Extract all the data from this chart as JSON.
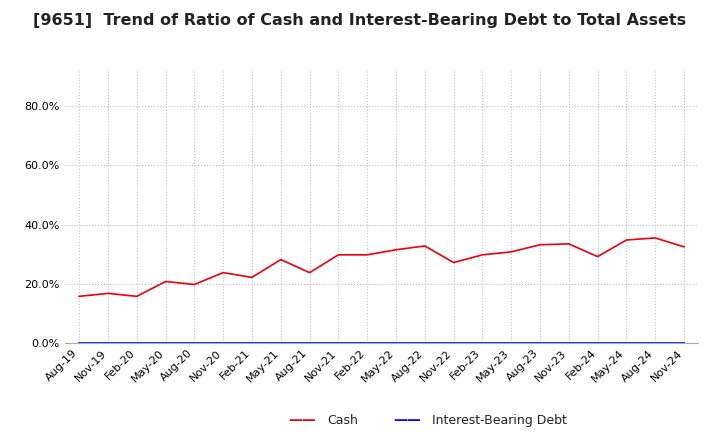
{
  "title": "[9651]  Trend of Ratio of Cash and Interest-Bearing Debt to Total Assets",
  "x_labels": [
    "Aug-19",
    "Nov-19",
    "Feb-20",
    "May-20",
    "Aug-20",
    "Nov-20",
    "Feb-21",
    "May-21",
    "Aug-21",
    "Nov-21",
    "Feb-22",
    "May-22",
    "Aug-22",
    "Nov-22",
    "Feb-23",
    "May-23",
    "Aug-23",
    "Nov-23",
    "Feb-24",
    "May-24",
    "Aug-24",
    "Nov-24"
  ],
  "cash": [
    0.158,
    0.168,
    0.158,
    0.208,
    0.198,
    0.238,
    0.222,
    0.282,
    0.238,
    0.298,
    0.298,
    0.315,
    0.328,
    0.272,
    0.298,
    0.308,
    0.332,
    0.335,
    0.292,
    0.348,
    0.355,
    0.325
  ],
  "interest_bearing_debt": [
    0.0,
    0.0,
    0.0,
    0.0,
    0.0,
    0.0,
    0.0,
    0.0,
    0.0,
    0.0,
    0.0,
    0.0,
    0.0,
    0.0,
    0.0,
    0.0,
    0.0,
    0.0,
    0.0,
    0.0,
    0.0,
    0.0
  ],
  "cash_color": "#e8000d",
  "debt_color": "#0000ff",
  "background_color": "#ffffff",
  "plot_bg_color": "#ffffff",
  "grid_color": "#c0c0c0",
  "title_fontsize": 11.5,
  "tick_fontsize": 8,
  "legend_cash": "Cash",
  "legend_debt": "Interest-Bearing Debt"
}
